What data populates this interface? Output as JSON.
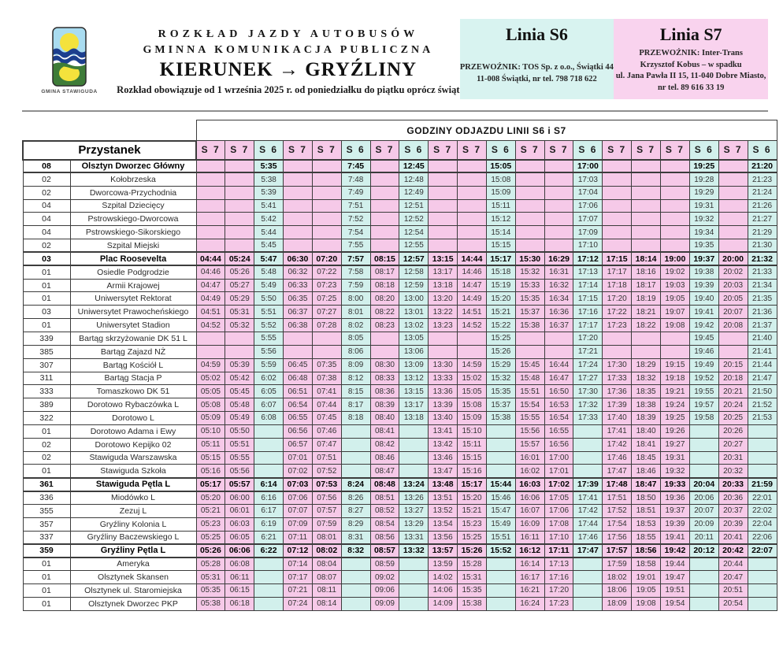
{
  "header": {
    "logo_caption": "GMINA STAWIGUDA",
    "title_line1": "ROZKŁAD JAZDY AUTOBUSÓW",
    "title_line2": "GMINNA KOMUNIKACJA PUBLICZNA",
    "direction": "KIERUNEK → GRYŹLINY",
    "validity": "Rozkład obowiązuje od 1 września 2025 r. od poniedziałku do piątku oprócz świąt",
    "line_s6": {
      "title": "Linia S6",
      "lines": [
        "PRZEWOŹNIK: TOS Sp. z o.o., Świątki 44",
        "11-008 Świątki, nr tel. 798 718 622"
      ]
    },
    "line_s7": {
      "title": "Linia S7",
      "lines": [
        "PRZEWOŹNIK: Inter-Trans",
        "Krzysztof Kobus – w spadku",
        "ul. Jana Pawła II 15, 11-040 Dobre Miasto,",
        "nr tel. 89 616 33 19"
      ]
    }
  },
  "colors": {
    "s6_cell": "#d2f0ec",
    "s7_cell": "#f6c9e8",
    "s6_box": "#d8f3f0",
    "s7_box": "#f9d3ee"
  },
  "table": {
    "departures_header": "GODZINY ODJAZDU LINII S6 i S7",
    "stop_header": "Przystanek",
    "line_columns": [
      "S 7",
      "S 7",
      "S 6",
      "S 7",
      "S 7",
      "S 6",
      "S 7",
      "S 6",
      "S 7",
      "S 7",
      "S 6",
      "S 7",
      "S 7",
      "S 6",
      "S 7",
      "S 7",
      "S 7",
      "S 6",
      "S 7",
      "S 6"
    ],
    "rows": [
      {
        "code": "08",
        "stop": "Olsztyn Dworzec Główny",
        "bold": true,
        "times": [
          "",
          "",
          "5:35",
          "",
          "",
          "7:45",
          "",
          "12:45",
          "",
          "",
          "15:05",
          "",
          "",
          "17:00",
          "",
          "",
          "",
          "19:25",
          "",
          "21:20"
        ]
      },
      {
        "code": "02",
        "stop": "Kołobrzeska",
        "times": [
          "",
          "",
          "5:38",
          "",
          "",
          "7:48",
          "",
          "12:48",
          "",
          "",
          "15:08",
          "",
          "",
          "17:03",
          "",
          "",
          "",
          "19:28",
          "",
          "21:23"
        ]
      },
      {
        "code": "02",
        "stop": "Dworcowa-Przychodnia",
        "times": [
          "",
          "",
          "5:39",
          "",
          "",
          "7:49",
          "",
          "12:49",
          "",
          "",
          "15:09",
          "",
          "",
          "17:04",
          "",
          "",
          "",
          "19:29",
          "",
          "21:24"
        ]
      },
      {
        "code": "04",
        "stop": "Szpital Dziecięcy",
        "times": [
          "",
          "",
          "5:41",
          "",
          "",
          "7:51",
          "",
          "12:51",
          "",
          "",
          "15:11",
          "",
          "",
          "17:06",
          "",
          "",
          "",
          "19:31",
          "",
          "21:26"
        ]
      },
      {
        "code": "04",
        "stop": "Pstrowskiego-Dworcowa",
        "times": [
          "",
          "",
          "5:42",
          "",
          "",
          "7:52",
          "",
          "12:52",
          "",
          "",
          "15:12",
          "",
          "",
          "17:07",
          "",
          "",
          "",
          "19:32",
          "",
          "21:27"
        ]
      },
      {
        "code": "04",
        "stop": "Pstrowskiego-Sikorskiego",
        "times": [
          "",
          "",
          "5:44",
          "",
          "",
          "7:54",
          "",
          "12:54",
          "",
          "",
          "15:14",
          "",
          "",
          "17:09",
          "",
          "",
          "",
          "19:34",
          "",
          "21:29"
        ]
      },
      {
        "code": "02",
        "stop": "Szpital Miejski",
        "times": [
          "",
          "",
          "5:45",
          "",
          "",
          "7:55",
          "",
          "12:55",
          "",
          "",
          "15:15",
          "",
          "",
          "17:10",
          "",
          "",
          "",
          "19:35",
          "",
          "21:30"
        ]
      },
      {
        "code": "03",
        "stop": "Plac Roosevelta",
        "bold": true,
        "times": [
          "04:44",
          "05:24",
          "5:47",
          "06:30",
          "07:20",
          "7:57",
          "08:15",
          "12:57",
          "13:15",
          "14:44",
          "15:17",
          "15:30",
          "16:29",
          "17:12",
          "17:15",
          "18:14",
          "19:00",
          "19:37",
          "20:00",
          "21:32"
        ]
      },
      {
        "code": "01",
        "stop": "Osiedle Podgrodzie",
        "times": [
          "04:46",
          "05:26",
          "5:48",
          "06:32",
          "07:22",
          "7:58",
          "08:17",
          "12:58",
          "13:17",
          "14:46",
          "15:18",
          "15:32",
          "16:31",
          "17:13",
          "17:17",
          "18:16",
          "19:02",
          "19:38",
          "20:02",
          "21:33"
        ]
      },
      {
        "code": "01",
        "stop": "Armii Krajowej",
        "times": [
          "04:47",
          "05:27",
          "5:49",
          "06:33",
          "07:23",
          "7:59",
          "08:18",
          "12:59",
          "13:18",
          "14:47",
          "15:19",
          "15:33",
          "16:32",
          "17:14",
          "17:18",
          "18:17",
          "19:03",
          "19:39",
          "20:03",
          "21:34"
        ]
      },
      {
        "code": "01",
        "stop": "Uniwersytet Rektorat",
        "times": [
          "04:49",
          "05:29",
          "5:50",
          "06:35",
          "07:25",
          "8:00",
          "08:20",
          "13:00",
          "13:20",
          "14:49",
          "15:20",
          "15:35",
          "16:34",
          "17:15",
          "17:20",
          "18:19",
          "19:05",
          "19:40",
          "20:05",
          "21:35"
        ]
      },
      {
        "code": "03",
        "stop": "Uniwersytet Prawocheńskiego",
        "times": [
          "04:51",
          "05:31",
          "5:51",
          "06:37",
          "07:27",
          "8:01",
          "08:22",
          "13:01",
          "13:22",
          "14:51",
          "15:21",
          "15:37",
          "16:36",
          "17:16",
          "17:22",
          "18:21",
          "19:07",
          "19:41",
          "20:07",
          "21:36"
        ]
      },
      {
        "code": "01",
        "stop": "Uniwersytet Stadion",
        "times": [
          "04:52",
          "05:32",
          "5:52",
          "06:38",
          "07:28",
          "8:02",
          "08:23",
          "13:02",
          "13:23",
          "14:52",
          "15:22",
          "15:38",
          "16:37",
          "17:17",
          "17:23",
          "18:22",
          "19:08",
          "19:42",
          "20:08",
          "21:37"
        ]
      },
      {
        "code": "339",
        "stop": "Bartąg skrzyżowanie DK 51 L",
        "times": [
          "",
          "",
          "5:55",
          "",
          "",
          "8:05",
          "",
          "13:05",
          "",
          "",
          "15:25",
          "",
          "",
          "17:20",
          "",
          "",
          "",
          "19:45",
          "",
          "21:40"
        ]
      },
      {
        "code": "385",
        "stop": "Bartąg Zajazd NŻ",
        "times": [
          "",
          "",
          "5:56",
          "",
          "",
          "8:06",
          "",
          "13:06",
          "",
          "",
          "15:26",
          "",
          "",
          "17:21",
          "",
          "",
          "",
          "19:46",
          "",
          "21:41"
        ]
      },
      {
        "code": "307",
        "stop": "Bartąg Kościół L",
        "times": [
          "04:59",
          "05:39",
          "5:59",
          "06:45",
          "07:35",
          "8:09",
          "08:30",
          "13:09",
          "13:30",
          "14:59",
          "15:29",
          "15:45",
          "16:44",
          "17:24",
          "17:30",
          "18:29",
          "19:15",
          "19:49",
          "20:15",
          "21:44"
        ]
      },
      {
        "code": "311",
        "stop": "Bartąg Stacja P",
        "times": [
          "05:02",
          "05:42",
          "6:02",
          "06:48",
          "07:38",
          "8:12",
          "08:33",
          "13:12",
          "13:33",
          "15:02",
          "15:32",
          "15:48",
          "16:47",
          "17:27",
          "17:33",
          "18:32",
          "19:18",
          "19:52",
          "20:18",
          "21:47"
        ]
      },
      {
        "code": "333",
        "stop": "Tomaszkowo DK 51",
        "times": [
          "05:05",
          "05:45",
          "6:05",
          "06:51",
          "07:41",
          "8:15",
          "08:36",
          "13:15",
          "13:36",
          "15:05",
          "15:35",
          "15:51",
          "16:50",
          "17:30",
          "17:36",
          "18:35",
          "19:21",
          "19:55",
          "20:21",
          "21:50"
        ]
      },
      {
        "code": "389",
        "stop": "Dorotowo Rybaczówka L",
        "times": [
          "05:08",
          "05:48",
          "6:07",
          "06:54",
          "07:44",
          "8:17",
          "08:39",
          "13:17",
          "13:39",
          "15:08",
          "15:37",
          "15:54",
          "16:53",
          "17:32",
          "17:39",
          "18:38",
          "19:24",
          "19:57",
          "20:24",
          "21:52"
        ]
      },
      {
        "code": "322",
        "stop": "Dorotowo L",
        "times": [
          "05:09",
          "05:49",
          "6:08",
          "06:55",
          "07:45",
          "8:18",
          "08:40",
          "13:18",
          "13:40",
          "15:09",
          "15:38",
          "15:55",
          "16:54",
          "17:33",
          "17:40",
          "18:39",
          "19:25",
          "19:58",
          "20:25",
          "21:53"
        ]
      },
      {
        "code": "01",
        "stop": "Dorotowo Adama i Ewy",
        "times": [
          "05:10",
          "05:50",
          "",
          "06:56",
          "07:46",
          "",
          "08:41",
          "",
          "13:41",
          "15:10",
          "",
          "15:56",
          "16:55",
          "",
          "17:41",
          "18:40",
          "19:26",
          "",
          "20:26",
          ""
        ]
      },
      {
        "code": "02",
        "stop": "Dorotowo Kepijko 02",
        "times": [
          "05:11",
          "05:51",
          "",
          "06:57",
          "07:47",
          "",
          "08:42",
          "",
          "13:42",
          "15:11",
          "",
          "15:57",
          "16:56",
          "",
          "17:42",
          "18:41",
          "19:27",
          "",
          "20:27",
          ""
        ]
      },
      {
        "code": "02",
        "stop": "Stawiguda Warszawska",
        "times": [
          "05:15",
          "05:55",
          "",
          "07:01",
          "07:51",
          "",
          "08:46",
          "",
          "13:46",
          "15:15",
          "",
          "16:01",
          "17:00",
          "",
          "17:46",
          "18:45",
          "19:31",
          "",
          "20:31",
          ""
        ]
      },
      {
        "code": "01",
        "stop": "Stawiguda Szkoła",
        "times": [
          "05:16",
          "05:56",
          "",
          "07:02",
          "07:52",
          "",
          "08:47",
          "",
          "13:47",
          "15:16",
          "",
          "16:02",
          "17:01",
          "",
          "17:47",
          "18:46",
          "19:32",
          "",
          "20:32",
          ""
        ]
      },
      {
        "code": "361",
        "stop": "Stawiguda Pętla L",
        "bold": true,
        "times": [
          "05:17",
          "05:57",
          "6:14",
          "07:03",
          "07:53",
          "8:24",
          "08:48",
          "13:24",
          "13:48",
          "15:17",
          "15:44",
          "16:03",
          "17:02",
          "17:39",
          "17:48",
          "18:47",
          "19:33",
          "20:04",
          "20:33",
          "21:59"
        ]
      },
      {
        "code": "336",
        "stop": "Miodówko L",
        "times": [
          "05:20",
          "06:00",
          "6:16",
          "07:06",
          "07:56",
          "8:26",
          "08:51",
          "13:26",
          "13:51",
          "15:20",
          "15:46",
          "16:06",
          "17:05",
          "17:41",
          "17:51",
          "18:50",
          "19:36",
          "20:06",
          "20:36",
          "22:01"
        ]
      },
      {
        "code": "355",
        "stop": "Zezuj L",
        "times": [
          "05:21",
          "06:01",
          "6:17",
          "07:07",
          "07:57",
          "8:27",
          "08:52",
          "13:27",
          "13:52",
          "15:21",
          "15:47",
          "16:07",
          "17:06",
          "17:42",
          "17:52",
          "18:51",
          "19:37",
          "20:07",
          "20:37",
          "22:02"
        ]
      },
      {
        "code": "357",
        "stop": "Gryźliny Kolonia L",
        "times": [
          "05:23",
          "06:03",
          "6:19",
          "07:09",
          "07:59",
          "8:29",
          "08:54",
          "13:29",
          "13:54",
          "15:23",
          "15:49",
          "16:09",
          "17:08",
          "17:44",
          "17:54",
          "18:53",
          "19:39",
          "20:09",
          "20:39",
          "22:04"
        ]
      },
      {
        "code": "337",
        "stop": "Gryźliny Baczewskiego L",
        "times": [
          "05:25",
          "06:05",
          "6:21",
          "07:11",
          "08:01",
          "8:31",
          "08:56",
          "13:31",
          "13:56",
          "15:25",
          "15:51",
          "16:11",
          "17:10",
          "17:46",
          "17:56",
          "18:55",
          "19:41",
          "20:11",
          "20:41",
          "22:06"
        ]
      },
      {
        "code": "359",
        "stop": "Gryźliny Pętla L",
        "bold": true,
        "times": [
          "05:26",
          "06:06",
          "6:22",
          "07:12",
          "08:02",
          "8:32",
          "08:57",
          "13:32",
          "13:57",
          "15:26",
          "15:52",
          "16:12",
          "17:11",
          "17:47",
          "17:57",
          "18:56",
          "19:42",
          "20:12",
          "20:42",
          "22:07"
        ]
      },
      {
        "code": "01",
        "stop": "Ameryka",
        "times": [
          "05:28",
          "06:08",
          "",
          "07:14",
          "08:04",
          "",
          "08:59",
          "",
          "13:59",
          "15:28",
          "",
          "16:14",
          "17:13",
          "",
          "17:59",
          "18:58",
          "19:44",
          "",
          "20:44",
          ""
        ]
      },
      {
        "code": "01",
        "stop": "Olsztynek Skansen",
        "times": [
          "05:31",
          "06:11",
          "",
          "07:17",
          "08:07",
          "",
          "09:02",
          "",
          "14:02",
          "15:31",
          "",
          "16:17",
          "17:16",
          "",
          "18:02",
          "19:01",
          "19:47",
          "",
          "20:47",
          ""
        ]
      },
      {
        "code": "01",
        "stop": "Olsztynek ul. Staromiejska",
        "times": [
          "05:35",
          "06:15",
          "",
          "07:21",
          "08:11",
          "",
          "09:06",
          "",
          "14:06",
          "15:35",
          "",
          "16:21",
          "17:20",
          "",
          "18:06",
          "19:05",
          "19:51",
          "",
          "20:51",
          ""
        ]
      },
      {
        "code": "01",
        "stop": "Olsztynek Dworzec PKP",
        "times": [
          "05:38",
          "06:18",
          "",
          "07:24",
          "08:14",
          "",
          "09:09",
          "",
          "14:09",
          "15:38",
          "",
          "16:24",
          "17:23",
          "",
          "18:09",
          "19:08",
          "19:54",
          "",
          "20:54",
          ""
        ]
      }
    ]
  }
}
